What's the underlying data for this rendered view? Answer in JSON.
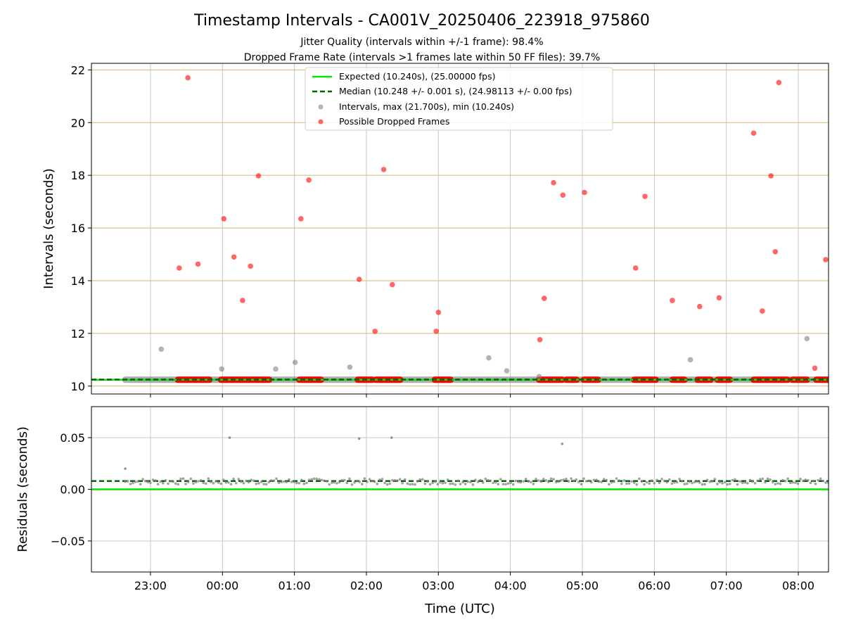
{
  "title": "Timestamp Intervals - CA001V_20250406_223918_975860",
  "subtitle1": "Jitter Quality (intervals within +/-1 frame): 98.4%",
  "subtitle2": "Dropped Frame Rate (intervals >1 frames late within 50 FF files): 39.7%",
  "colors": {
    "expected": "#00e600",
    "median": "#006400",
    "intervals": "#808080",
    "dropped": "#ff0000",
    "hgrid_top": "#d2b96e",
    "grid": "#c8c8c8"
  },
  "legend": {
    "expected": "Expected (10.240s), (25.00000 fps)",
    "median": "Median (10.248 +/- 0.001 s), (24.98113 +/- 0.00 fps)",
    "intervals": "Intervals, max (21.700s), min (10.240s)",
    "dropped": "Possible Dropped Frames"
  },
  "chart_data": [
    {
      "type": "scatter",
      "panel": "top",
      "xlabel": "",
      "ylabel": "Intervals (seconds)",
      "xlim": [
        -1.82,
        8.42
      ],
      "ylim": [
        9.7,
        22.25
      ],
      "yticks": [
        10,
        12,
        14,
        16,
        18,
        20,
        22
      ],
      "xticks": [
        -1,
        0,
        1,
        2,
        3,
        4,
        5,
        6,
        7,
        8
      ],
      "xticklabels": [
        "23:00",
        "00:00",
        "01:00",
        "02:00",
        "03:00",
        "04:00",
        "05:00",
        "06:00",
        "07:00",
        "08:00"
      ],
      "expected": 10.24,
      "median": 10.248,
      "baseline_span": [
        -1.35,
        8.42
      ],
      "dropped_clusters": [
        [
          -0.62,
          -0.18
        ],
        [
          -0.02,
          0.65
        ],
        [
          1.07,
          1.37
        ],
        [
          1.88,
          2.08
        ],
        [
          2.13,
          2.47
        ],
        [
          2.95,
          3.17
        ],
        [
          4.4,
          4.72
        ],
        [
          4.78,
          4.92
        ],
        [
          5.02,
          5.22
        ],
        [
          5.72,
          6.02
        ],
        [
          6.25,
          6.42
        ],
        [
          6.6,
          6.78
        ],
        [
          6.88,
          7.05
        ],
        [
          7.38,
          7.85
        ],
        [
          7.92,
          8.12
        ],
        [
          8.25,
          8.42
        ]
      ],
      "series": [
        {
          "name": "Intervals, max (21.700s), min (10.240s)",
          "points": [
            [
              -0.85,
              11.4
            ],
            [
              -0.01,
              10.65
            ],
            [
              0.74,
              10.65
            ],
            [
              1.01,
              10.9
            ],
            [
              1.77,
              10.72
            ],
            [
              3.7,
              11.07
            ],
            [
              3.95,
              10.58
            ],
            [
              6.5,
              11.0
            ],
            [
              8.12,
              11.8
            ],
            [
              4.4,
              10.36
            ]
          ]
        },
        {
          "name": "Possible Dropped Frames",
          "points": [
            [
              -0.6,
              14.48
            ],
            [
              -0.48,
              21.7
            ],
            [
              -0.34,
              14.63
            ],
            [
              0.02,
              16.35
            ],
            [
              0.16,
              14.9
            ],
            [
              0.28,
              13.25
            ],
            [
              0.39,
              14.55
            ],
            [
              0.5,
              17.98
            ],
            [
              1.09,
              16.35
            ],
            [
              1.2,
              17.82
            ],
            [
              1.9,
              14.05
            ],
            [
              2.12,
              12.08
            ],
            [
              2.24,
              18.22
            ],
            [
              2.36,
              13.85
            ],
            [
              2.97,
              12.08
            ],
            [
              3.0,
              12.8
            ],
            [
              4.41,
              11.76
            ],
            [
              4.47,
              13.33
            ],
            [
              4.6,
              17.72
            ],
            [
              4.73,
              17.25
            ],
            [
              5.03,
              17.35
            ],
            [
              5.74,
              14.48
            ],
            [
              5.87,
              17.2
            ],
            [
              6.25,
              13.25
            ],
            [
              6.63,
              13.02
            ],
            [
              6.9,
              13.35
            ],
            [
              7.38,
              19.6
            ],
            [
              7.5,
              12.85
            ],
            [
              7.62,
              17.98
            ],
            [
              7.68,
              15.1
            ],
            [
              7.73,
              21.52
            ],
            [
              8.23,
              10.68
            ],
            [
              8.38,
              14.8
            ]
          ]
        }
      ]
    },
    {
      "type": "scatter",
      "panel": "bottom",
      "xlabel": "Time (UTC)",
      "ylabel": "Residuals (seconds)",
      "xlim": [
        -1.82,
        8.42
      ],
      "ylim": [
        -0.08,
        0.08
      ],
      "yticks": [
        -0.05,
        0.0,
        0.05
      ],
      "yticklabels": [
        "−0.05",
        "0.00",
        "0.05"
      ],
      "xticks": [
        -1,
        0,
        1,
        2,
        3,
        4,
        5,
        6,
        7,
        8
      ],
      "xticklabels": [
        "23:00",
        "00:00",
        "01:00",
        "02:00",
        "03:00",
        "04:00",
        "05:00",
        "06:00",
        "07:00",
        "08:00"
      ],
      "expected": 0.0,
      "median": 0.008,
      "series": [
        {
          "name": "Residuals",
          "points": [
            [
              -1.35,
              0.02
            ],
            [
              0.1,
              0.05
            ],
            [
              1.9,
              0.049
            ],
            [
              2.35,
              0.05
            ],
            [
              4.72,
              0.044
            ]
          ],
          "band": {
            "x_from": -1.35,
            "x_to": 8.42,
            "center": 0.0075,
            "spread": 0.003
          }
        }
      ]
    }
  ]
}
